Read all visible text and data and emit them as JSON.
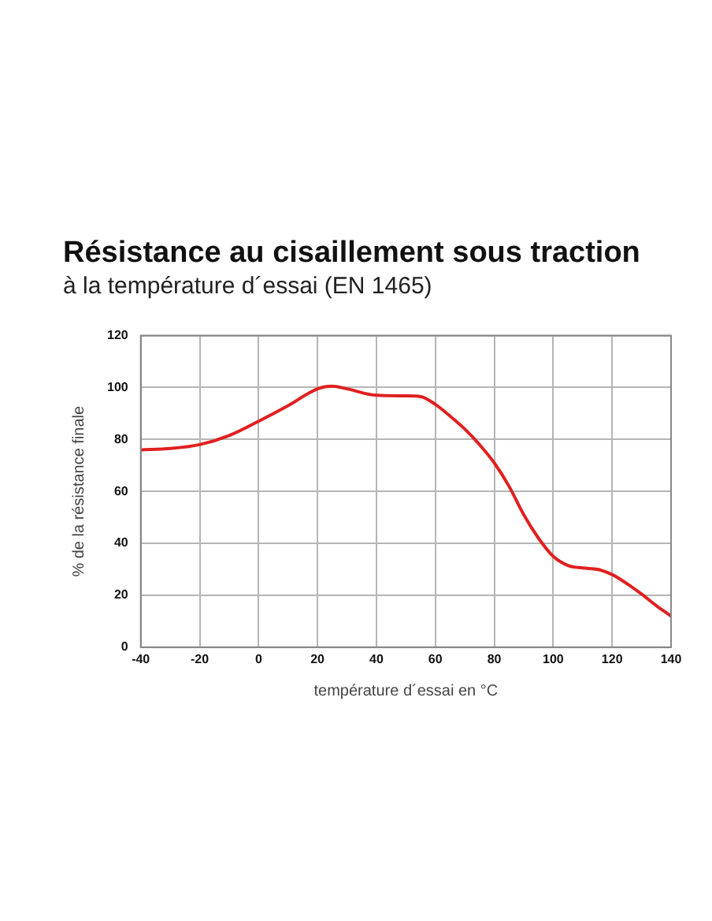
{
  "chart_data": {
    "type": "line",
    "title": "Résistance au cisaillement sous traction",
    "subtitle": "à la température d´essai (EN 1465)",
    "xlabel": "température d´essai en °C",
    "ylabel": "% de la résistance finale",
    "x": [
      -40,
      -30,
      -20,
      -10,
      0,
      10,
      20,
      25,
      30,
      40,
      50,
      55,
      60,
      65,
      70,
      75,
      80,
      85,
      90,
      95,
      100,
      105,
      110,
      115,
      120,
      125,
      130,
      135,
      140
    ],
    "series": [
      {
        "color": "#e02020",
        "values": [
          76,
          76.5,
          78,
          81.5,
          87,
          93,
          99.5,
          100.5,
          99.5,
          97,
          96.8,
          96.5,
          93.5,
          89,
          84,
          78,
          71,
          62,
          51,
          42,
          35,
          31.5,
          30.5,
          30,
          28,
          24.5,
          20.5,
          16,
          12
        ]
      }
    ],
    "xlim": [
      -40,
      140
    ],
    "xticks": [
      -40,
      -20,
      0,
      20,
      40,
      60,
      80,
      100,
      120,
      140
    ],
    "ylim": [
      0,
      120
    ],
    "yticks": [
      0,
      20,
      40,
      60,
      80,
      100,
      120
    ],
    "grid": true,
    "legend": false,
    "marker": "none",
    "line_style": "solid"
  }
}
